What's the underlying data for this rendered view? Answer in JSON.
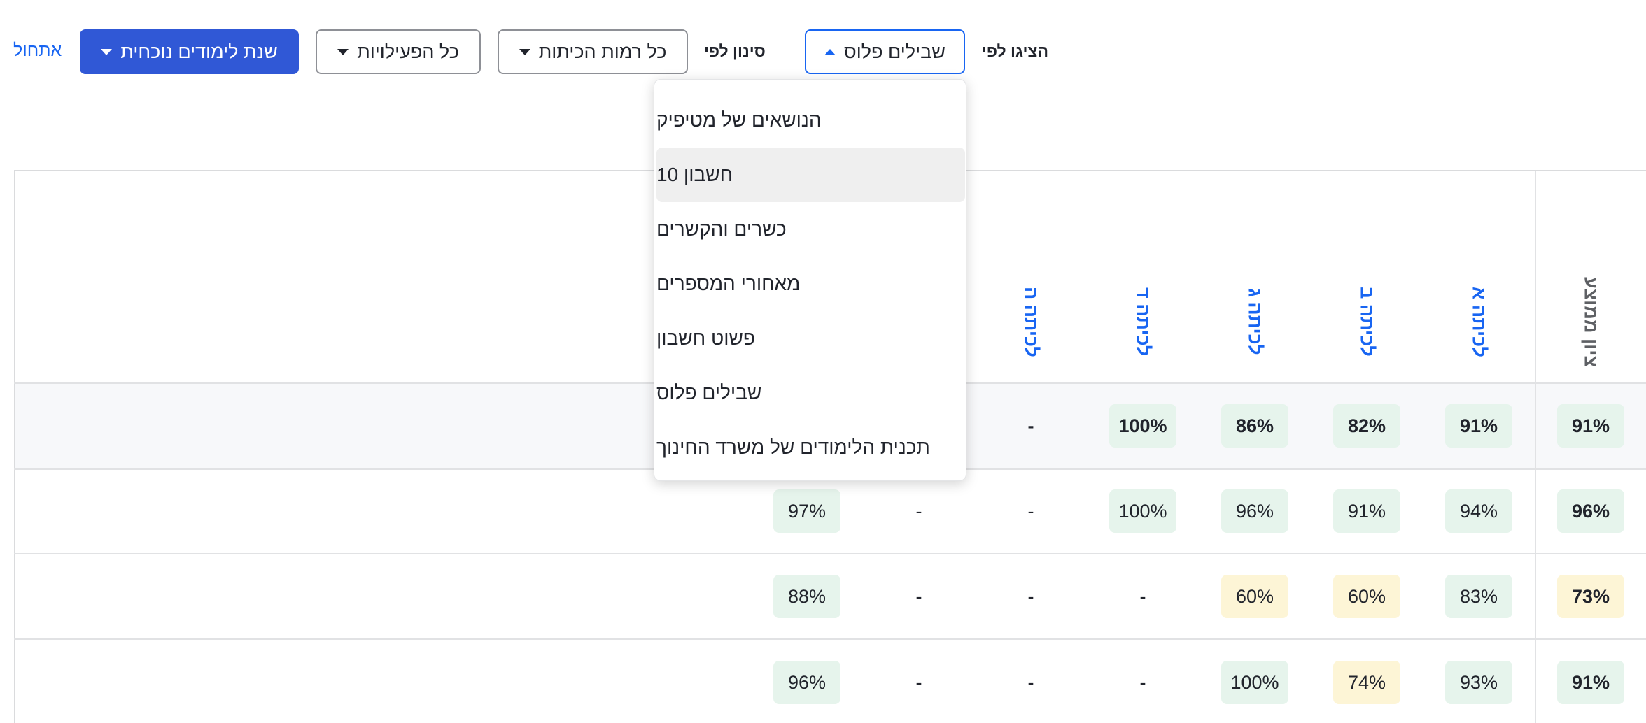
{
  "toolbar": {
    "reset_link": "אתחול",
    "year_button": "שנת לימודים נוכחית",
    "activities_button": "כל הפעילויות",
    "grades_button": "כל רמות הכיתות",
    "filter_label": "סינון לפי",
    "showby_button": "שבילים פלוס",
    "showby_label": "הציגו לפי"
  },
  "menu": {
    "items": [
      "הנושאים של מטיפיק",
      "חשבון 10",
      "כשרים והקשרים",
      "מאחורי המספרים",
      "פשוט חשבון",
      "שבילים פלוס",
      "תכנית הלימודים של משרד החינוך"
    ],
    "selected": "חשבון 10"
  },
  "table": {
    "headers": {
      "avg": "ציון ממוצע",
      "grade1": "לכיתה א",
      "grade2": "לכיתה ב",
      "grade3": "לכיתה ג",
      "grade4": "לכיתה ד",
      "grade5": "לכיתה ה"
    },
    "rows": [
      {
        "avg": "91%",
        "g1": "91%",
        "g2": "82%",
        "g3": "86%",
        "g4": "100%",
        "g5": "-"
      },
      {
        "avg": "96%",
        "g1": "94%",
        "g2": "91%",
        "g3": "96%",
        "g4": "100%",
        "g5": "-",
        "g6": "-",
        "last": "97%"
      },
      {
        "avg": "73%",
        "g1": "83%",
        "g2": "60%",
        "g3": "60%",
        "g4": "-",
        "g5": "-",
        "g6": "-",
        "last": "88%"
      },
      {
        "avg": "91%",
        "g1": "93%",
        "g2": "74%",
        "g3": "100%",
        "g4": "-",
        "g5": "-",
        "g6": "-",
        "last": "96%"
      }
    ]
  },
  "colors": {
    "primary": "#3058d6",
    "link": "#1865f2",
    "good_bg": "#e6f4ec",
    "warn_bg": "#fdf5d6"
  }
}
